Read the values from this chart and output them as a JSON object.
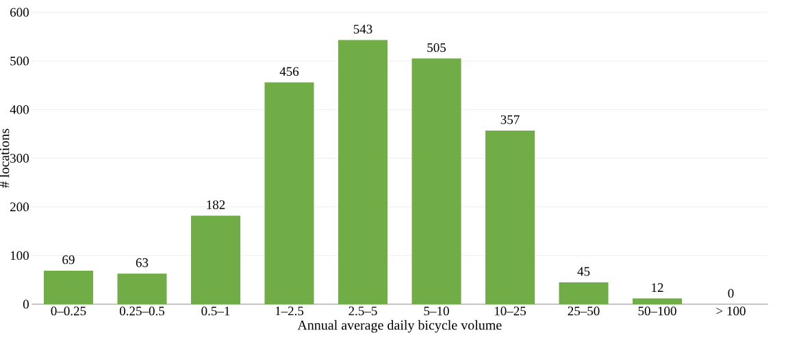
{
  "chart_data": {
    "type": "bar",
    "xlabel": "Annual average daily bicycle volume",
    "ylabel": "# locations",
    "categories": [
      "0–0.25",
      "0.25–0.5",
      "0.5–1",
      "1–2.5",
      "2.5–5",
      "5–10",
      "10–25",
      "25–50",
      "50–100",
      "> 100"
    ],
    "values": [
      69,
      63,
      182,
      456,
      543,
      505,
      357,
      45,
      12,
      0
    ],
    "color": "#70ad47",
    "ylim": [
      0,
      600
    ],
    "yticks": [
      0,
      100,
      200,
      300,
      400,
      500,
      600
    ],
    "grid": "y",
    "data_labels": true
  }
}
